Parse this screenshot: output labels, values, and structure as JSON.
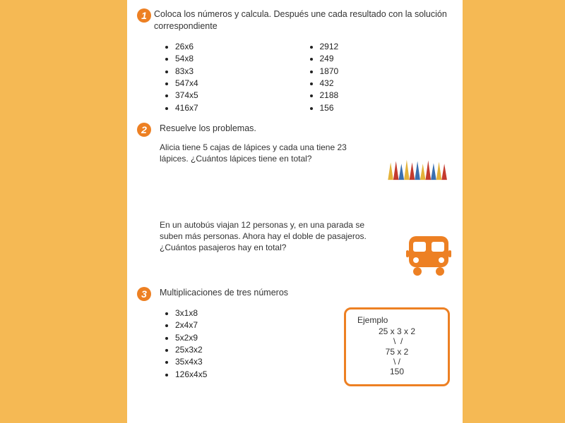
{
  "colors": {
    "page_bg": "#f5b954",
    "sheet_bg": "#ffffff",
    "accent": "#ed8023",
    "text": "#333333"
  },
  "section1": {
    "badge": "1",
    "title": "Coloca los números y calcula. Después une cada resultado con la solución correspondiente",
    "left_items": [
      "26x6",
      "54x8",
      "83x3",
      "547x4",
      "374x5",
      "416x7"
    ],
    "right_items": [
      "2912",
      "249",
      "1870",
      "432",
      "2188",
      "156"
    ]
  },
  "section2": {
    "badge": "2",
    "title": "Resuelve los problemas.",
    "problem1": "Alicia tiene 5 cajas de lápices y cada una tiene 23 lápices. ¿Cuántos lápices tiene en total?",
    "problem2": "En un autobús viajan 12 personas y, en una parada se suben más personas. Ahora hay el doble de pasajeros. ¿Cuántos pasajeros hay en total?"
  },
  "section3": {
    "badge": "3",
    "title": "Multiplicaciones de tres números",
    "items": [
      "3x1x8",
      "2x4x7",
      "5x2x9",
      "25x3x2",
      "35x4x3",
      "126x4x5"
    ],
    "example": {
      "label": "Ejemplo",
      "line1": "25 x 3 x 2",
      "line2": "75 x 2",
      "line3": "150"
    }
  }
}
